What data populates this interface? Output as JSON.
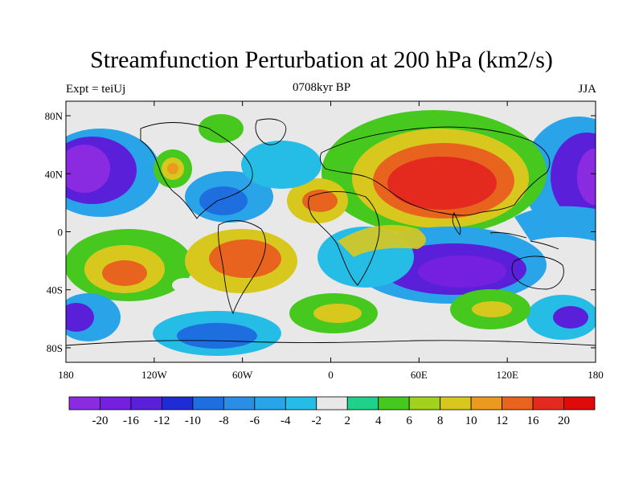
{
  "title": "Streamfunction Perturbation at 200 hPa (km2/s)",
  "subtitle_left": "Expt = teiUj",
  "subtitle_center": "0708kyr BP",
  "subtitle_right": "JJA",
  "map": {
    "projection": "cylindrical equidistant",
    "lon_range": [
      -180,
      180
    ],
    "lat_range": [
      -90,
      90
    ],
    "lon_ticks": [
      {
        "lon": -180,
        "label": "180"
      },
      {
        "lon": -120,
        "label": "120W"
      },
      {
        "lon": -60,
        "label": "60W"
      },
      {
        "lon": 0,
        "label": "0"
      },
      {
        "lon": 60,
        "label": "60E"
      },
      {
        "lon": 120,
        "label": "120E"
      },
      {
        "lon": 180,
        "label": "180"
      }
    ],
    "lat_ticks": [
      {
        "lat": 80,
        "label": "80N"
      },
      {
        "lat": 40,
        "label": "40N"
      },
      {
        "lat": 0,
        "label": "0"
      },
      {
        "lat": -40,
        "label": "40S"
      },
      {
        "lat": -80,
        "label": "80S"
      }
    ]
  },
  "colorbar": {
    "levels": [
      "-20",
      "-16",
      "-12",
      "-10",
      "-8",
      "-6",
      "-4",
      "-2",
      "2",
      "4",
      "6",
      "8",
      "10",
      "12",
      "16",
      "20"
    ],
    "colors": [
      "#8a2be2",
      "#7520e0",
      "#5a1fd8",
      "#1d2cd6",
      "#1e6ee0",
      "#2a8ee6",
      "#2aa4e8",
      "#25bde6",
      "#e8e8e8",
      "#1ed28c",
      "#46c81e",
      "#a2d21e",
      "#d8c81e",
      "#ea9a1e",
      "#e8641e",
      "#e42a1e",
      "#e00a0a"
    ]
  }
}
